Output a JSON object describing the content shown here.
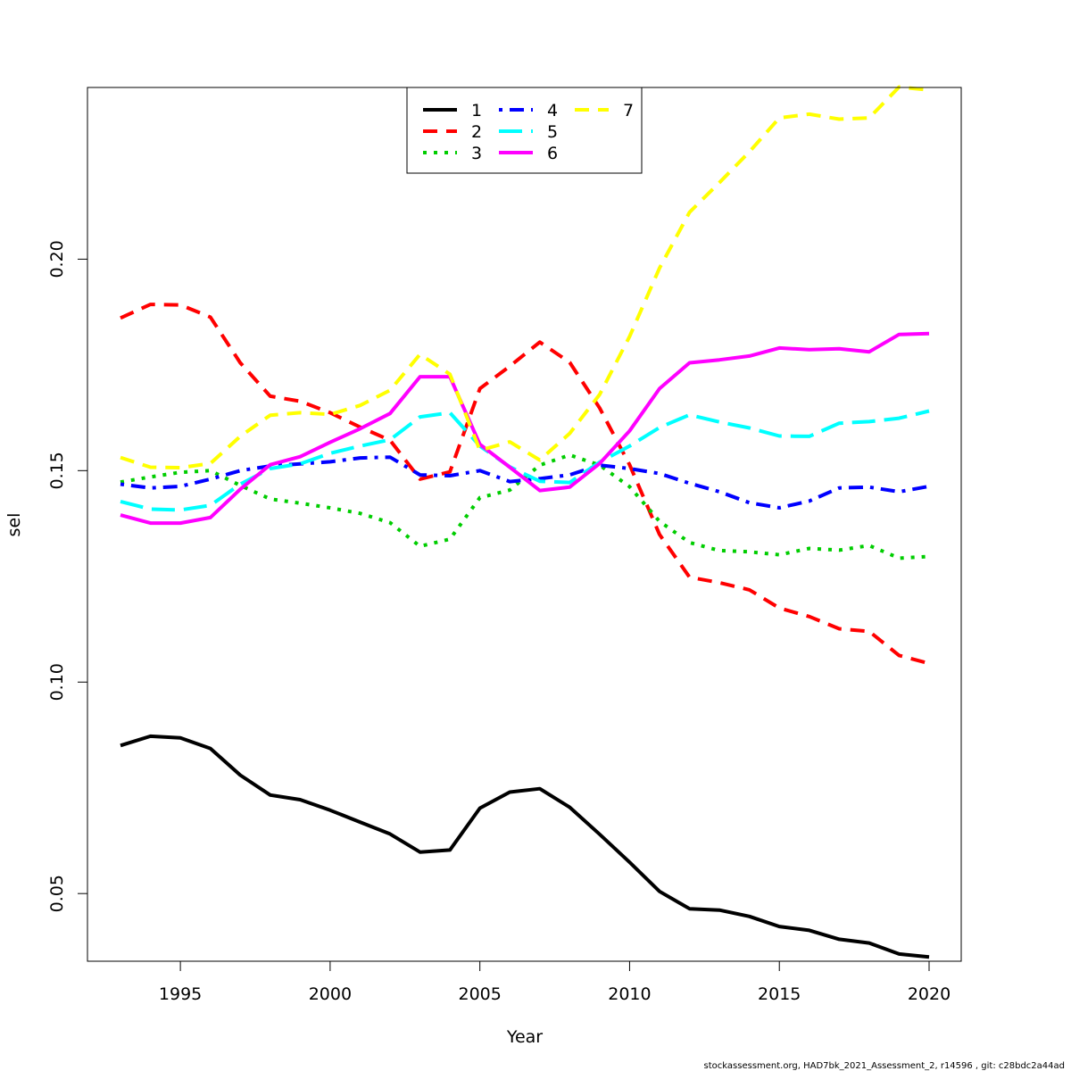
{
  "chart_data": {
    "type": "line",
    "xlabel": "Year",
    "ylabel": "sel",
    "xlim": [
      1993,
      2020
    ],
    "ylim": [
      0.034,
      0.2406
    ],
    "x_ticks": [
      1995,
      2000,
      2005,
      2010,
      2015,
      2020
    ],
    "y_ticks": [
      0.05,
      0.1,
      0.15,
      0.2
    ],
    "y_tick_labels": [
      "0.05",
      "0.10",
      "0.15",
      "0.20"
    ],
    "grid": false,
    "legend_position": "top-center",
    "x": [
      1993,
      1994,
      1995,
      1996,
      1997,
      1998,
      1999,
      2000,
      2001,
      2002,
      2003,
      2004,
      2005,
      2006,
      2007,
      2008,
      2009,
      2010,
      2011,
      2012,
      2013,
      2014,
      2015,
      2016,
      2017,
      2018,
      2019,
      2020
    ],
    "series": [
      {
        "name": "1",
        "color": "#000000",
        "dash": "solid",
        "values": [
          0.085,
          0.0872,
          0.0868,
          0.0843,
          0.078,
          0.0733,
          0.0722,
          0.0697,
          0.0669,
          0.0641,
          0.0598,
          0.0603,
          0.0702,
          0.074,
          0.0748,
          0.0704,
          0.064,
          0.0574,
          0.0505,
          0.0464,
          0.0461,
          0.0446,
          0.0422,
          0.0413,
          0.0392,
          0.0383,
          0.0357,
          0.035
        ]
      },
      {
        "name": "2",
        "color": "#ff0000",
        "dash": "dashed",
        "values": [
          0.1861,
          0.1893,
          0.1892,
          0.1863,
          0.1755,
          0.1676,
          0.1664,
          0.1637,
          0.1603,
          0.1572,
          0.148,
          0.1497,
          0.1694,
          0.1747,
          0.1804,
          0.1756,
          0.1648,
          0.1514,
          0.1349,
          0.1248,
          0.1235,
          0.1218,
          0.1175,
          0.1155,
          0.1126,
          0.112,
          0.1063,
          0.1044
        ]
      },
      {
        "name": "3",
        "color": "#00cd00",
        "dash": "dotted",
        "values": [
          0.1473,
          0.1485,
          0.1496,
          0.15,
          0.1465,
          0.1433,
          0.1423,
          0.1412,
          0.1399,
          0.1377,
          0.1321,
          0.1338,
          0.1436,
          0.1454,
          0.1513,
          0.1537,
          0.1513,
          0.1462,
          0.138,
          0.133,
          0.1311,
          0.1308,
          0.1301,
          0.1316,
          0.1312,
          0.1323,
          0.1293,
          0.1297
        ]
      },
      {
        "name": "4",
        "color": "#0000ff",
        "dash": "dotdash",
        "values": [
          0.1468,
          0.1459,
          0.1463,
          0.148,
          0.15,
          0.1511,
          0.1516,
          0.1521,
          0.153,
          0.1532,
          0.149,
          0.1488,
          0.15,
          0.1474,
          0.1481,
          0.149,
          0.1513,
          0.1505,
          0.1493,
          0.147,
          0.145,
          0.1424,
          0.1412,
          0.1428,
          0.1459,
          0.1461,
          0.145,
          0.1463
        ]
      },
      {
        "name": "5",
        "color": "#00ffff",
        "dash": "longdash",
        "values": [
          0.1427,
          0.1409,
          0.1407,
          0.1418,
          0.1468,
          0.1505,
          0.1516,
          0.1541,
          0.1558,
          0.1573,
          0.1627,
          0.1637,
          0.1558,
          0.1509,
          0.1475,
          0.1472,
          0.152,
          0.1558,
          0.1602,
          0.1632,
          0.1615,
          0.1601,
          0.1582,
          0.1581,
          0.1612,
          0.1616,
          0.1624,
          0.1641
        ]
      },
      {
        "name": "6",
        "color": "#ff00ff",
        "dash": "solid",
        "values": [
          0.1395,
          0.1376,
          0.1376,
          0.1389,
          0.1456,
          0.1514,
          0.1533,
          0.1567,
          0.1599,
          0.1635,
          0.1722,
          0.1722,
          0.1562,
          0.1508,
          0.1453,
          0.1461,
          0.1517,
          0.1594,
          0.1694,
          0.1755,
          0.1762,
          0.1771,
          0.179,
          0.1786,
          0.1788,
          0.1781,
          0.1822,
          0.1824
        ]
      },
      {
        "name": "7",
        "color": "#ffff00",
        "dash": "dashed",
        "values": [
          0.1531,
          0.1508,
          0.1507,
          0.1517,
          0.1581,
          0.1631,
          0.1637,
          0.1633,
          0.1654,
          0.169,
          0.1775,
          0.1728,
          0.1548,
          0.1568,
          0.1525,
          0.1588,
          0.168,
          0.1817,
          0.1979,
          0.2111,
          0.2181,
          0.2254,
          0.2334,
          0.2343,
          0.2331,
          0.2334,
          0.2407,
          0.24
        ]
      }
    ]
  },
  "footnote": "stockassessment.org, HAD7bk_2021_Assessment_2, r14596 , git: c28bdc2a44ad"
}
